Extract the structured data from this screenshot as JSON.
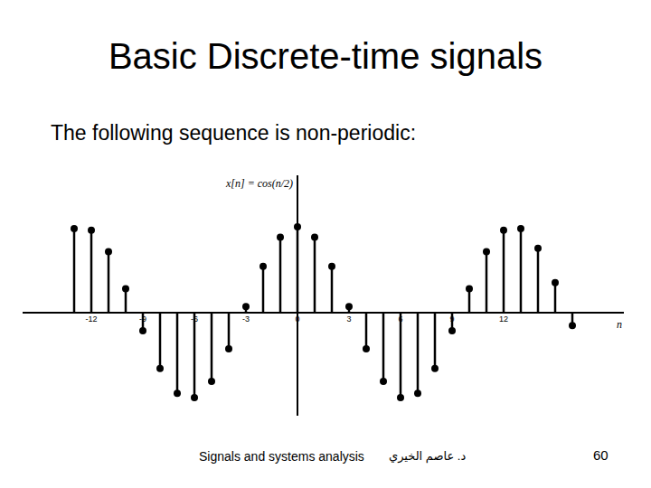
{
  "slide": {
    "title": "Basic Discrete-time signals",
    "subtitle": "The following sequence is non-periodic:",
    "footer": "Signals and systems analysis",
    "author": "د. عاصم الخيري",
    "page": 60
  },
  "chart_data": {
    "type": "stem",
    "ylabel": "x[n] = cos(n/2)",
    "xlabel": "n",
    "x": [
      -13,
      -12,
      -11,
      -10,
      -9,
      -8,
      -7,
      -6,
      -5,
      -4,
      -3,
      -2,
      -1,
      0,
      1,
      2,
      3,
      4,
      5,
      6,
      7,
      8,
      9,
      10,
      11,
      12,
      13,
      14,
      15,
      16
    ],
    "values": [
      0.98,
      0.96,
      0.71,
      0.28,
      -0.21,
      -0.65,
      -0.94,
      -0.99,
      -0.8,
      -0.42,
      0.07,
      0.54,
      0.88,
      1.0,
      0.88,
      0.54,
      0.07,
      -0.42,
      -0.8,
      -0.99,
      -0.94,
      -0.65,
      -0.21,
      0.28,
      0.71,
      0.96,
      0.98,
      0.75,
      0.35,
      -0.15
    ],
    "color": "#000000",
    "marker": "circle",
    "xlim": [
      -16,
      19
    ],
    "ylim": [
      -1.2,
      1.6
    ],
    "xticks": [
      -12,
      -9,
      -6,
      -3,
      0,
      3,
      6,
      9,
      12
    ],
    "tick_labels": "x",
    "grid": false
  }
}
